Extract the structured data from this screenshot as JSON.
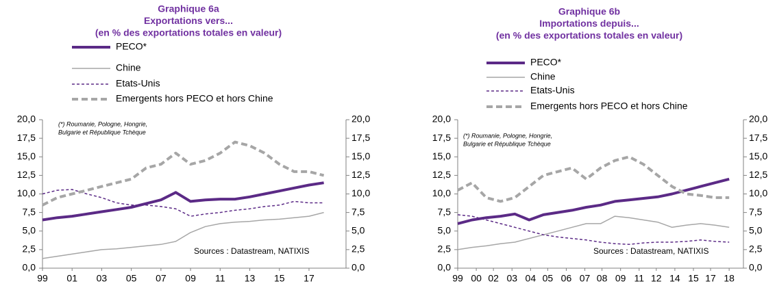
{
  "chart_data": [
    {
      "type": "line",
      "title": [
        "Graphique 6a",
        "Exportations vers...",
        "(en % des exportations totales en valeur)"
      ],
      "note": [
        "(*) Roumanie, Pologne, Hongrie,",
        "Bulgarie et République Tchèque"
      ],
      "source": "Sources : Datastream, NATIXIS",
      "x": [
        1999,
        2000,
        2001,
        2002,
        2003,
        2004,
        2005,
        2006,
        2007,
        2008,
        2009,
        2010,
        2011,
        2012,
        2013,
        2014,
        2015,
        2016,
        2017,
        2018
      ],
      "xlim": [
        1999,
        2019.5
      ],
      "xticks": [
        {
          "value": 1999,
          "label": "99"
        },
        {
          "value": 2001,
          "label": "01"
        },
        {
          "value": 2003,
          "label": "03"
        },
        {
          "value": 2005,
          "label": "05"
        },
        {
          "value": 2007,
          "label": "07"
        },
        {
          "value": 2009,
          "label": "09"
        },
        {
          "value": 2011,
          "label": "11"
        },
        {
          "value": 2013,
          "label": "13"
        },
        {
          "value": 2015,
          "label": "15"
        },
        {
          "value": 2017,
          "label": "17"
        }
      ],
      "ylim": [
        0,
        20
      ],
      "yticks": [
        {
          "value": 0,
          "label": "0,0"
        },
        {
          "value": 2.5,
          "label": "2,5"
        },
        {
          "value": 5,
          "label": "5,0"
        },
        {
          "value": 7.5,
          "label": "7,5"
        },
        {
          "value": 10,
          "label": "10,0"
        },
        {
          "value": 12.5,
          "label": "12,5"
        },
        {
          "value": 15,
          "label": "15,0"
        },
        {
          "value": 17.5,
          "label": "17,5"
        },
        {
          "value": 20,
          "label": "20,0"
        }
      ],
      "y2lim": [
        0,
        20
      ],
      "y2ticks": [
        {
          "value": 0,
          "label": "0,0"
        },
        {
          "value": 2.5,
          "label": "2,5"
        },
        {
          "value": 5,
          "label": "5,0"
        },
        {
          "value": 7.5,
          "label": "7,5"
        },
        {
          "value": 10,
          "label": "10,0"
        },
        {
          "value": 12.5,
          "label": "12,5"
        },
        {
          "value": 15,
          "label": "15,0"
        },
        {
          "value": 17.5,
          "label": "17,5"
        },
        {
          "value": 20,
          "label": "20,0"
        }
      ],
      "series": [
        {
          "name": "PECO*",
          "color": "#5b2a86",
          "width": 4,
          "dash": "none",
          "values": [
            6.5,
            6.8,
            7.0,
            7.3,
            7.6,
            7.9,
            8.2,
            8.7,
            9.2,
            10.2,
            9.0,
            9.2,
            9.3,
            9.3,
            9.6,
            10.0,
            10.4,
            10.8,
            11.2,
            11.5
          ]
        },
        {
          "name": "Chine",
          "color": "#a6a6a6",
          "width": 1.5,
          "dash": "none",
          "values": [
            1.3,
            1.6,
            1.9,
            2.2,
            2.5,
            2.6,
            2.8,
            3.0,
            3.2,
            3.6,
            4.8,
            5.6,
            6.0,
            6.2,
            6.3,
            6.5,
            6.6,
            6.8,
            7.0,
            7.5
          ]
        },
        {
          "name": "Etats-Unis",
          "color": "#5b2a86",
          "width": 1.5,
          "dash": "4 3",
          "values": [
            10.0,
            10.5,
            10.6,
            10.0,
            9.5,
            8.8,
            8.5,
            8.5,
            8.3,
            8.0,
            7.0,
            7.3,
            7.5,
            7.8,
            8.0,
            8.3,
            8.5,
            9.0,
            8.8,
            8.8
          ]
        },
        {
          "name": "Emergents hors PECO et hors Chine",
          "color": "#a6a6a6",
          "width": 4,
          "dash": "9 5",
          "values": [
            8.5,
            9.5,
            10.0,
            10.5,
            11.0,
            11.5,
            12.0,
            13.5,
            14.0,
            15.5,
            14.0,
            14.5,
            15.5,
            17.0,
            16.5,
            15.5,
            14.0,
            13.0,
            13.0,
            12.5
          ]
        }
      ]
    },
    {
      "type": "line",
      "title": [
        "Graphique 6b",
        "Importations depuis...",
        "(en % des exportations totales en valeur)"
      ],
      "note": [
        "(*) Roumanie, Pologne, Hongrie,",
        "Bulgarie et République Tchèque"
      ],
      "source": "Sources : Datastream, NATIXIS",
      "x": [
        1999,
        2000,
        2001,
        2002,
        2003,
        2004,
        2005,
        2006,
        2007,
        2008,
        2009,
        2010,
        2011,
        2012,
        2013,
        2014,
        2015,
        2016,
        2017,
        2018
      ],
      "xlim": [
        1999,
        2019
      ],
      "xticks": [
        {
          "value": 1999,
          "label": "99"
        },
        {
          "value": 2000.3,
          "label": "00"
        },
        {
          "value": 2001.5,
          "label": "02"
        },
        {
          "value": 2002.8,
          "label": "03"
        },
        {
          "value": 2004.1,
          "label": "04"
        },
        {
          "value": 2005.3,
          "label": "05"
        },
        {
          "value": 2006.6,
          "label": "06"
        },
        {
          "value": 2007.9,
          "label": "07"
        },
        {
          "value": 2009.1,
          "label": "08"
        },
        {
          "value": 2010.4,
          "label": "09"
        },
        {
          "value": 2011.7,
          "label": "11"
        },
        {
          "value": 2012.9,
          "label": "12"
        },
        {
          "value": 2014.2,
          "label": "14"
        },
        {
          "value": 2015.5,
          "label": "15"
        },
        {
          "value": 2016.7,
          "label": "17"
        },
        {
          "value": 2018,
          "label": "18"
        }
      ],
      "ylim": [
        0,
        20
      ],
      "yticks": [
        {
          "value": 0,
          "label": "0,0"
        },
        {
          "value": 2.5,
          "label": "2,5"
        },
        {
          "value": 5,
          "label": "5,0"
        },
        {
          "value": 7.5,
          "label": "7,5"
        },
        {
          "value": 10,
          "label": "10,0"
        },
        {
          "value": 12.5,
          "label": "12,5"
        },
        {
          "value": 15,
          "label": "15,0"
        },
        {
          "value": 17.5,
          "label": "17,5"
        },
        {
          "value": 20,
          "label": "20,0"
        }
      ],
      "y2lim": [
        0,
        20
      ],
      "y2ticks": [
        {
          "value": 0,
          "label": "0,0"
        },
        {
          "value": 2.5,
          "label": "2,5"
        },
        {
          "value": 5,
          "label": "5,0"
        },
        {
          "value": 7.5,
          "label": "7,5"
        },
        {
          "value": 10,
          "label": "10,0"
        },
        {
          "value": 12.5,
          "label": "12,5"
        },
        {
          "value": 15,
          "label": "15,0"
        },
        {
          "value": 17.5,
          "label": "17,5"
        },
        {
          "value": 20,
          "label": "20,0"
        }
      ],
      "series": [
        {
          "name": "PECO*",
          "color": "#5b2a86",
          "width": 4,
          "dash": "none",
          "values": [
            6.0,
            6.5,
            6.8,
            7.0,
            7.3,
            6.5,
            7.2,
            7.5,
            7.8,
            8.2,
            8.5,
            9.0,
            9.2,
            9.4,
            9.6,
            10.0,
            10.5,
            11.0,
            11.5,
            12.0
          ]
        },
        {
          "name": "Chine",
          "color": "#a6a6a6",
          "width": 1.5,
          "dash": "none",
          "values": [
            2.5,
            2.8,
            3.0,
            3.3,
            3.5,
            4.0,
            4.5,
            5.0,
            5.5,
            6.0,
            6.0,
            7.0,
            6.8,
            6.5,
            6.2,
            5.5,
            5.8,
            6.0,
            5.8,
            5.5
          ]
        },
        {
          "name": "Etats-Unis",
          "color": "#5b2a86",
          "width": 1.5,
          "dash": "4 3",
          "values": [
            7.2,
            7.0,
            6.5,
            6.0,
            5.5,
            5.0,
            4.5,
            4.2,
            4.0,
            3.8,
            3.5,
            3.3,
            3.2,
            3.4,
            3.5,
            3.5,
            3.6,
            3.8,
            3.6,
            3.5
          ]
        },
        {
          "name": "Emergents hors PECO et hors Chine",
          "color": "#a6a6a6",
          "width": 4,
          "dash": "9 5",
          "values": [
            10.5,
            11.5,
            9.5,
            9.0,
            9.5,
            11.0,
            12.5,
            13.0,
            13.5,
            12.0,
            13.5,
            14.5,
            15.0,
            14.0,
            12.5,
            11.0,
            10.0,
            9.8,
            9.5,
            9.5
          ]
        }
      ]
    }
  ]
}
